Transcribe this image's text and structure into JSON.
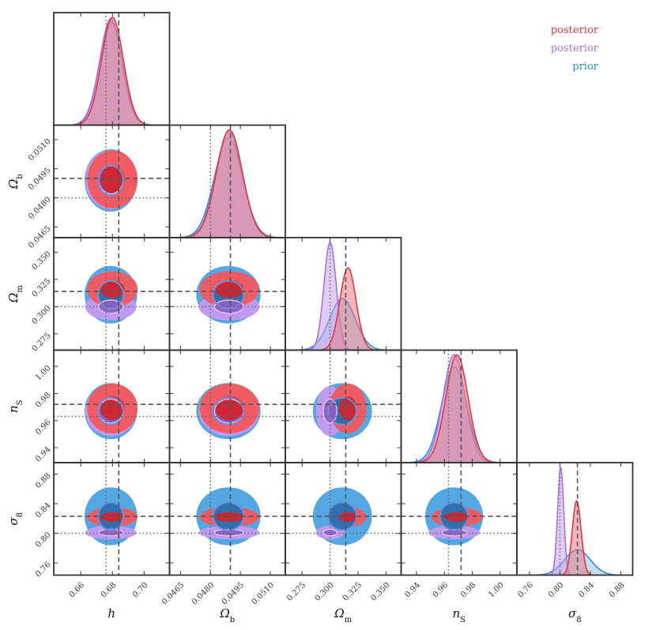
{
  "chart_data": {
    "type": "corner",
    "legend_position": "top-right",
    "legend": [
      {
        "label": "posterior",
        "color": "#e8353f"
      },
      {
        "label": "posterior",
        "color": "#a772e0"
      },
      {
        "label": "prior",
        "color": "#2a8fd6"
      }
    ],
    "parameters": [
      {
        "key": "h",
        "label": "h",
        "range": [
          0.643,
          0.716
        ],
        "ticks": [
          "0.66",
          "0.68",
          "0.70"
        ],
        "tick_values": [
          0.66,
          0.68,
          0.7
        ],
        "truth_dashed": 0.684,
        "truth_dotted": 0.676
      },
      {
        "key": "ob",
        "label": "Ωb",
        "range": [
          0.04595,
          0.05175
        ],
        "ticks": [
          "0.0465",
          "0.0480",
          "0.0495",
          "0.0510"
        ],
        "tick_values": [
          0.0465,
          0.048,
          0.0495,
          0.051
        ],
        "truth_dashed": 0.049,
        "truth_dotted": 0.048
      },
      {
        "key": "om",
        "label": "Ωm",
        "range": [
          0.26,
          0.3635
        ],
        "ticks": [
          "0.275",
          "0.300",
          "0.325",
          "0.350"
        ],
        "tick_values": [
          0.275,
          0.3,
          0.325,
          0.35
        ],
        "truth_dashed": 0.314,
        "truth_dotted": 0.3
      },
      {
        "key": "ns",
        "label": "nS",
        "range": [
          0.929,
          1.012
        ],
        "ticks": [
          "0.94",
          "0.96",
          "0.98",
          "1.00"
        ],
        "tick_values": [
          0.94,
          0.96,
          0.98,
          1.0
        ],
        "truth_dashed": 0.972,
        "truth_dotted": 0.963
      },
      {
        "key": "s8",
        "label": "σ8",
        "range": [
          0.7435,
          0.8955
        ],
        "ticks": [
          "0.76",
          "0.80",
          "0.84",
          "0.88"
        ],
        "tick_values": [
          0.76,
          0.8,
          0.84,
          0.88
        ],
        "truth_dashed": 0.823,
        "truth_dotted": 0.8
      }
    ],
    "marginals": {
      "h": {
        "red": {
          "mean": 0.68,
          "sd": 0.0069
        },
        "purple": {
          "mean": 0.679,
          "sd": 0.007
        },
        "blue": {
          "mean": 0.679,
          "sd": 0.0072
        }
      },
      "ob": {
        "red": {
          "mean": 0.04895,
          "sd": 0.00065
        },
        "purple": {
          "mean": 0.04893,
          "sd": 0.00066
        },
        "blue": {
          "mean": 0.0489,
          "sd": 0.0007
        }
      },
      "om": {
        "red": {
          "mean": 0.316,
          "sd": 0.0072
        },
        "purple": {
          "mean": 0.3,
          "sd": 0.0055
        },
        "blue": {
          "mean": 0.311,
          "sd": 0.0115
        }
      },
      "ns": {
        "red": {
          "mean": 0.969,
          "sd": 0.008
        },
        "purple": {
          "mean": 0.967,
          "sd": 0.008
        },
        "blue": {
          "mean": 0.967,
          "sd": 0.009
        }
      },
      "s8": {
        "red": {
          "mean": 0.822,
          "sd": 0.0058
        },
        "purple": {
          "mean": 0.801,
          "sd": 0.004
        },
        "blue": {
          "mean": 0.823,
          "sd": 0.017
        }
      }
    }
  }
}
